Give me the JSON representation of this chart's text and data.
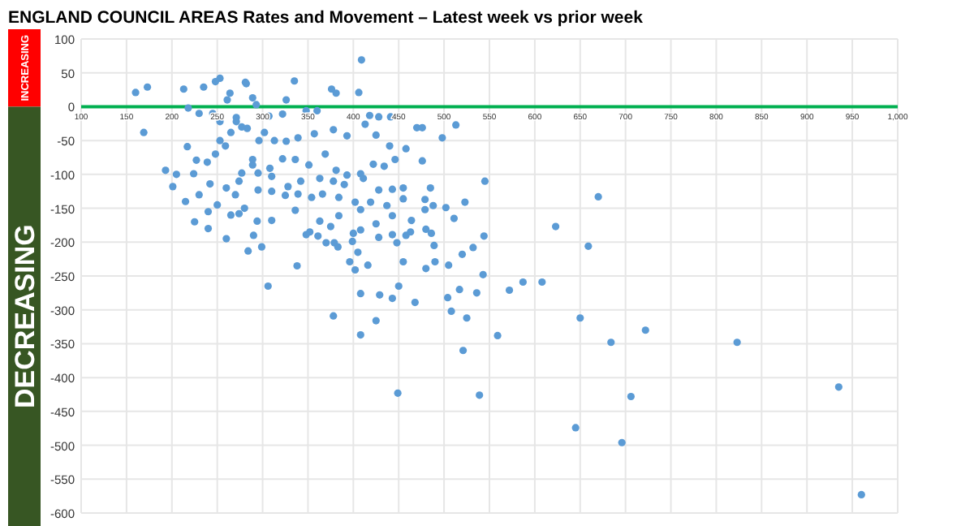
{
  "chart_data": {
    "type": "scatter",
    "title": "ENGLAND COUNCIL AREAS Rates and Movement – Latest week vs prior week",
    "annotations": [
      "INCREASING",
      "DECREASING"
    ],
    "xlim": [
      100,
      1000
    ],
    "ylim": [
      -600,
      100
    ],
    "xticks": [
      100,
      150,
      200,
      250,
      300,
      350,
      400,
      450,
      500,
      550,
      600,
      650,
      700,
      750,
      800,
      850,
      900,
      950,
      {
        "value": 1000,
        "label": "1,000"
      }
    ],
    "yticks": [
      -600,
      -550,
      -500,
      -450,
      -400,
      -350,
      -300,
      -250,
      -200,
      -150,
      -100,
      -50,
      0,
      50,
      100
    ],
    "grid": true,
    "marker": "circle",
    "series": [
      {
        "color": "#5b9bd5",
        "x": [
          960,
          935,
          823,
          722,
          706,
          696,
          684,
          670,
          659,
          650,
          645,
          623,
          608,
          587,
          572,
          559,
          545,
          543,
          539,
          536,
          525,
          521,
          517,
          508,
          504,
          489,
          468,
          450,
          449,
          443,
          429,
          425,
          408,
          408,
          378,
          338,
          306,
          299,
          284,
          352,
          361,
          370,
          379,
          383,
          399,
          400,
          405,
          396,
          402,
          416,
          428,
          448,
          458,
          463,
          455,
          480,
          486,
          480,
          490,
          505,
          520,
          532,
          544,
          409,
          281,
          335,
          376,
          381,
          406,
          326,
          289,
          293,
          271,
          307,
          322,
          348,
          360,
          418,
          428,
          441,
          470,
          476,
          498,
          513,
          283,
          302,
          296,
          313,
          326,
          339,
          357,
          378,
          393,
          425,
          413,
          440,
          458,
          446,
          434,
          422,
          476,
          408,
          393,
          381,
          369,
          351,
          336,
          322,
          308,
          289,
          274,
          310,
          328,
          342,
          363,
          378,
          390,
          411,
          428,
          443,
          455,
          485,
          479,
          455,
          437,
          419,
          402,
          384,
          366,
          354,
          339,
          325,
          310,
          295,
          274,
          294,
          310,
          336,
          363,
          384,
          408,
          425,
          443,
          464,
          479,
          488,
          502,
          511,
          523,
          408,
          375,
          348,
          443,
          160,
          173,
          213,
          235,
          248,
          253,
          261,
          264,
          282,
          169,
          218,
          230,
          245,
          217,
          227,
          224,
          193,
          201,
          242,
          253,
          259,
          265,
          253,
          271,
          277,
          289,
          239,
          248,
          277,
          295,
          230,
          240,
          250,
          215,
          225,
          260,
          265,
          280,
          270,
          205,
          240,
          290,
          260
        ],
        "values": [
          -573,
          -414,
          -348,
          -330,
          -428,
          -496,
          -348,
          -133,
          -206,
          -312,
          -474,
          -177,
          -259,
          -259,
          -271,
          -338,
          -110,
          -248,
          -426,
          -275,
          -312,
          -360,
          -270,
          -302,
          -282,
          -205,
          -289,
          -265,
          -423,
          -283,
          -278,
          -316,
          -276,
          -337,
          -309,
          -235,
          -265,
          -207,
          -213,
          -185,
          -191,
          -201,
          -201,
          -207,
          -199,
          -187,
          -215,
          -229,
          -241,
          -234,
          -193,
          -201,
          -190,
          -185,
          -229,
          -181,
          -187,
          -239,
          -229,
          -234,
          -218,
          -208,
          -191,
          69,
          36,
          38,
          26,
          20,
          21,
          10,
          13,
          3,
          -16,
          -14,
          -11,
          -6,
          -6,
          -13,
          -15,
          -15,
          -31,
          -31,
          -46,
          -27,
          -32,
          -38,
          -50,
          -50,
          -51,
          -46,
          -40,
          -34,
          -43,
          -42,
          -26,
          -58,
          -62,
          -78,
          -88,
          -85,
          -80,
          -99,
          -101,
          -94,
          -70,
          -86,
          -78,
          -77,
          -91,
          -86,
          -110,
          -103,
          -118,
          -110,
          -106,
          -110,
          -115,
          -106,
          -123,
          -122,
          -120,
          -120,
          -137,
          -136,
          -146,
          -141,
          -141,
          -134,
          -129,
          -134,
          -129,
          -131,
          -125,
          -123,
          -158,
          -169,
          -168,
          -153,
          -169,
          -161,
          -152,
          -173,
          -161,
          -168,
          -152,
          -146,
          -149,
          -165,
          -141,
          -182,
          -177,
          -189,
          -189,
          21,
          29,
          26,
          29,
          37,
          42,
          10,
          20,
          34,
          -38,
          -2,
          -10,
          -10,
          -59,
          -79,
          -99,
          -94,
          -118,
          -114,
          -50,
          -58,
          -38,
          -22,
          -22,
          -30,
          -78,
          -82,
          -70,
          -98,
          -98,
          -130,
          -155,
          -145,
          -140,
          -170,
          -120,
          -160,
          -150,
          -130,
          -100,
          -180,
          -190,
          -195
        ]
      }
    ]
  }
}
